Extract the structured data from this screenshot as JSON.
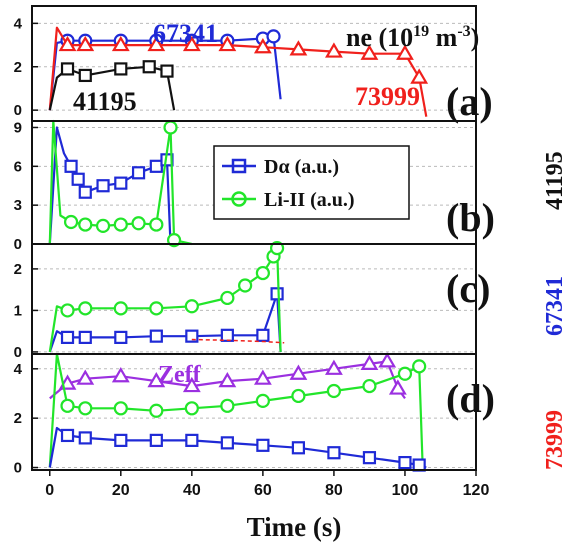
{
  "colors": {
    "black": "#111111",
    "blue": "#1f2ad6",
    "red": "#f0201c",
    "green": "#22e52a",
    "purple": "#9b30e0"
  },
  "chart_data": [
    {
      "type": "line",
      "panel_label": "(a)",
      "annotation": "ne (10",
      "annotation_sup1": "19",
      "annotation_mid": " m",
      "annotation_sup2": "-3",
      "annotation_end": ")",
      "ylim": [
        -0.5,
        4.8
      ],
      "yticks": [
        "0",
        "2",
        "4"
      ],
      "series": [
        {
          "name": "67341",
          "color": "#1f2ad6",
          "x": [
            0,
            2,
            5,
            10,
            20,
            30,
            40,
            50,
            60,
            63,
            65
          ],
          "y": [
            0,
            3.1,
            3.2,
            3.2,
            3.2,
            3.2,
            3.2,
            3.2,
            3.3,
            3.4,
            0.5
          ]
        },
        {
          "name": "73999",
          "color": "#f0201c",
          "x": [
            0,
            2,
            5,
            10,
            20,
            30,
            40,
            50,
            60,
            70,
            80,
            90,
            100,
            104,
            106
          ],
          "y": [
            0,
            3.8,
            3.0,
            3.0,
            3.0,
            3.0,
            3.0,
            3.0,
            2.9,
            2.8,
            2.7,
            2.6,
            2.6,
            1.5,
            -0.3
          ]
        },
        {
          "name": "41195",
          "color": "#111111",
          "x": [
            0,
            2,
            5,
            10,
            20,
            28,
            33,
            35
          ],
          "y": [
            0,
            1.5,
            1.9,
            1.6,
            1.9,
            2.0,
            1.8,
            0
          ]
        }
      ]
    },
    {
      "type": "line",
      "panel_label": "(b)",
      "side_label": "41195",
      "ylim": [
        0,
        9.5
      ],
      "yticks": [
        "0",
        "3",
        "6",
        "9"
      ],
      "series": [
        {
          "name": "Dα (a.u.)",
          "color": "#1f2ad6",
          "x": [
            0,
            2,
            4,
            6,
            8,
            10,
            15,
            20,
            25,
            30,
            33,
            34
          ],
          "y": [
            0,
            9,
            7,
            6,
            5,
            4,
            4.5,
            4.7,
            5.5,
            6,
            6.5,
            0
          ]
        },
        {
          "name": "Li-II (a.u.)",
          "color": "#22e52a",
          "x": [
            0,
            1,
            3,
            6,
            10,
            15,
            20,
            25,
            30,
            34,
            35,
            40
          ],
          "y": [
            0,
            9.5,
            2.2,
            1.7,
            1.5,
            1.4,
            1.5,
            1.6,
            1.5,
            9,
            0.3,
            0
          ]
        }
      ]
    },
    {
      "type": "line",
      "panel_label": "(c)",
      "side_label": "67341",
      "ylim": [
        -0.05,
        2.6
      ],
      "yticks": [
        "0",
        "1",
        "2"
      ],
      "series": [
        {
          "name": "Dα",
          "color": "#1f2ad6",
          "x": [
            0,
            2,
            5,
            10,
            20,
            30,
            40,
            50,
            60,
            64,
            65
          ],
          "y": [
            0,
            0.5,
            0.35,
            0.35,
            0.35,
            0.38,
            0.38,
            0.4,
            0.4,
            1.4,
            0
          ]
        },
        {
          "name": "Li-II",
          "color": "#22e52a",
          "x": [
            0,
            2,
            5,
            10,
            20,
            30,
            40,
            50,
            55,
            60,
            63,
            64,
            65
          ],
          "y": [
            0,
            1.1,
            1.0,
            1.05,
            1.05,
            1.05,
            1.1,
            1.3,
            1.6,
            1.9,
            2.3,
            2.5,
            0
          ]
        },
        {
          "name": "ne",
          "color": "#f0201c",
          "x": [
            40,
            50,
            60,
            66
          ],
          "y": [
            0.3,
            0.28,
            0.25,
            0.22
          ]
        }
      ]
    },
    {
      "type": "line",
      "panel_label": "(d)",
      "side_label": "73999",
      "annotation": "Zeff",
      "ylim": [
        -0.1,
        4.6
      ],
      "yticks": [
        "0",
        "2",
        "4"
      ],
      "series": [
        {
          "name": "Zeff",
          "color": "#9b30e0",
          "x": [
            0,
            5,
            10,
            20,
            30,
            40,
            50,
            60,
            70,
            80,
            90,
            95,
            98,
            100
          ],
          "y": [
            2.8,
            3.4,
            3.6,
            3.7,
            3.5,
            3.3,
            3.5,
            3.6,
            3.8,
            4.0,
            4.2,
            4.3,
            3.2,
            2.8
          ]
        },
        {
          "name": "Li-II",
          "color": "#22e52a",
          "x": [
            0,
            2,
            5,
            10,
            20,
            30,
            40,
            50,
            60,
            70,
            80,
            90,
            100,
            104,
            105
          ],
          "y": [
            0,
            4.6,
            2.5,
            2.4,
            2.4,
            2.3,
            2.4,
            2.5,
            2.7,
            2.9,
            3.1,
            3.3,
            3.8,
            4.1,
            0
          ]
        },
        {
          "name": "Dα",
          "color": "#1f2ad6",
          "x": [
            0,
            2,
            5,
            10,
            20,
            30,
            40,
            50,
            60,
            70,
            80,
            90,
            100,
            104,
            106
          ],
          "y": [
            0,
            1.6,
            1.3,
            1.2,
            1.1,
            1.1,
            1.1,
            1.0,
            0.9,
            0.8,
            0.6,
            0.4,
            0.2,
            0.1,
            0
          ]
        }
      ]
    }
  ],
  "x_axis": {
    "label": "Time (s)",
    "ticks": [
      "0",
      "20",
      "40",
      "60",
      "80",
      "100",
      "120"
    ],
    "xlim": [
      -5,
      120
    ]
  }
}
